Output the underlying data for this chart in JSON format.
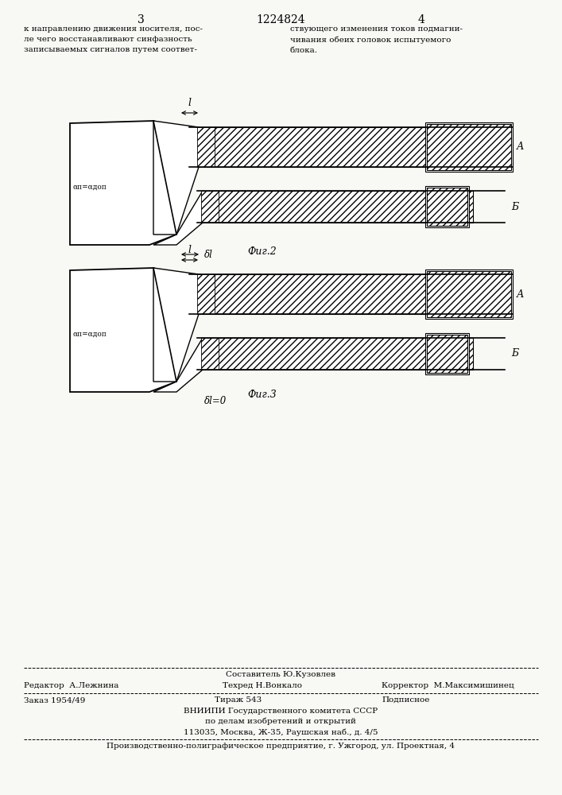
{
  "bg_color": "#f8f8f4",
  "page_num_left": "3",
  "page_num_center": "1224824",
  "page_num_right": "4",
  "text_left_col": "к направлению движения носителя, пос-\nле чего восстанавливают синфазность\nзаписываемых сигналов путем соответ-",
  "text_right_col": "ствующего изменения токов подмагни-\nчивания обеих головок испытуемого\nблока.",
  "fig2_label": "Фиг.2",
  "fig3_label": "Фиг.3",
  "label_A1": "А",
  "label_B1": "Б",
  "label_A2": "А",
  "label_B2": "Б",
  "label_l": "l",
  "label_dl1": "δl",
  "label_dl2": "δl=0",
  "label_alpha1": "αп=αдоп",
  "label_alpha2": "αп=αдоп",
  "footer_line1": "Составитель Ю.Кузовлев",
  "footer_line2_r": "Редактор  А.Лежнина",
  "footer_line2_c": "Техред Н.Вонкало",
  "footer_line2_k": "Корректор  М.Максимишинец",
  "footer_line3a": "Заказ 1954/49",
  "footer_line3b": "Тираж 543",
  "footer_line3c": "Подписное",
  "footer_line4": "ВНИИПИ Государственного комитета СССР",
  "footer_line5": "по делам изобретений и открытий",
  "footer_line6": "113035, Москва, Ж-35, Раушская наб., д. 4/5",
  "footer_line7": "Производственно-полиграфическое предприятие, г. Ужгород, ул. Проектная, 4",
  "line_color": "#000000"
}
